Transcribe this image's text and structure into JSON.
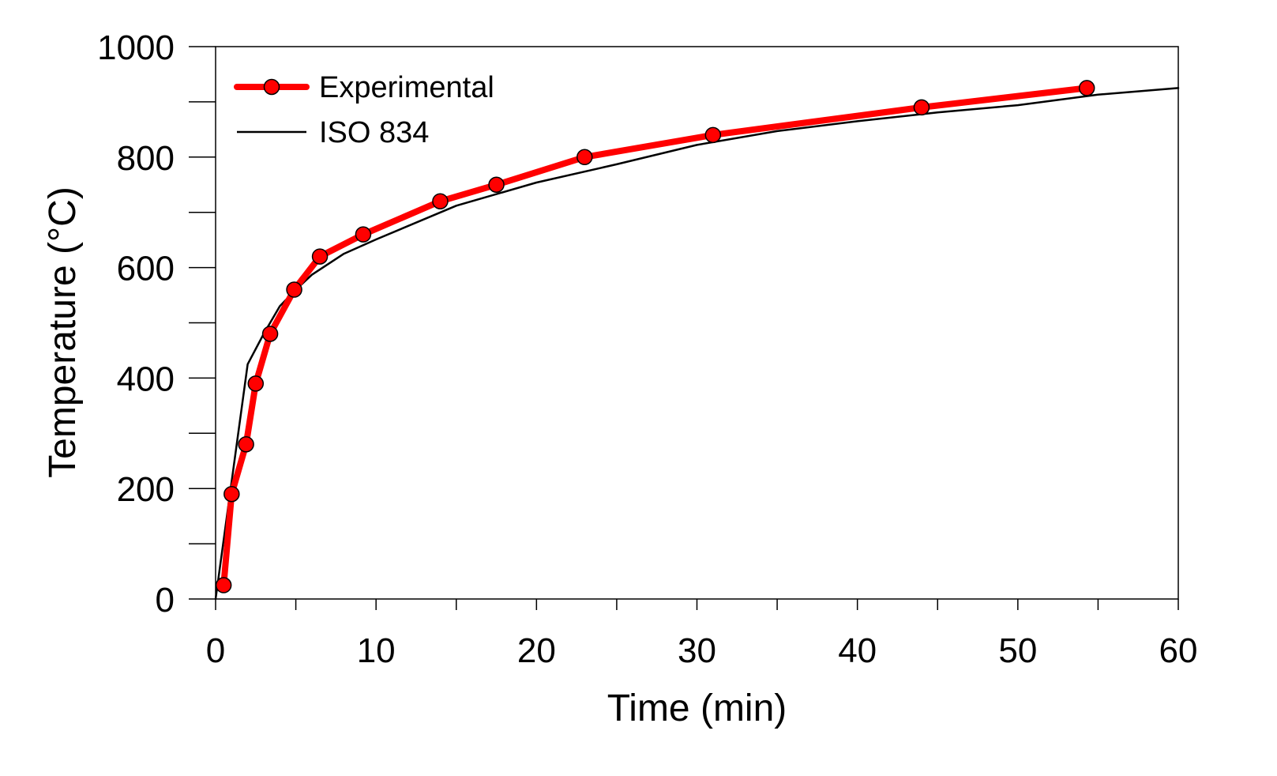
{
  "chart_data": {
    "type": "line",
    "title": "",
    "xlabel": "Time (min)",
    "ylabel": "Temperature  (°C)",
    "xlim": [
      0,
      60
    ],
    "ylim": [
      0,
      1000
    ],
    "x_ticks": [
      0,
      10,
      20,
      30,
      40,
      50,
      60
    ],
    "x_tick_labels": [
      "0",
      "10",
      "20",
      "30",
      "40",
      "50",
      "60"
    ],
    "x_minor_step": 5,
    "y_ticks": [
      0,
      200,
      400,
      600,
      800,
      1000
    ],
    "y_tick_labels": [
      "0",
      "200",
      "400",
      "600",
      "800",
      "1000"
    ],
    "y_minor_step": 100,
    "grid": false,
    "legend_position": "top-left",
    "series": [
      {
        "name": "Experimental",
        "label": "Experimental",
        "color": "#ff0000",
        "marker": "circle",
        "x": [
          0.5,
          1.0,
          1.9,
          2.5,
          3.4,
          4.9,
          6.5,
          9.2,
          14.0,
          17.5,
          23.0,
          31.0,
          44.0,
          54.3
        ],
        "y": [
          25,
          190,
          280,
          390,
          480,
          560,
          620,
          660,
          720,
          750,
          800,
          840,
          890,
          925
        ]
      },
      {
        "name": "ISO 834",
        "label": "ISO 834",
        "color": "#000000",
        "marker": "none",
        "x": [
          0,
          2,
          3,
          4,
          5,
          6,
          8,
          10,
          15,
          20,
          25,
          30,
          35,
          40,
          45,
          50,
          55,
          60
        ],
        "y": [
          0,
          425,
          480,
          530,
          560,
          587,
          625,
          651,
          712,
          754,
          787,
          822,
          847,
          865,
          881,
          894,
          913,
          925
        ]
      }
    ]
  }
}
